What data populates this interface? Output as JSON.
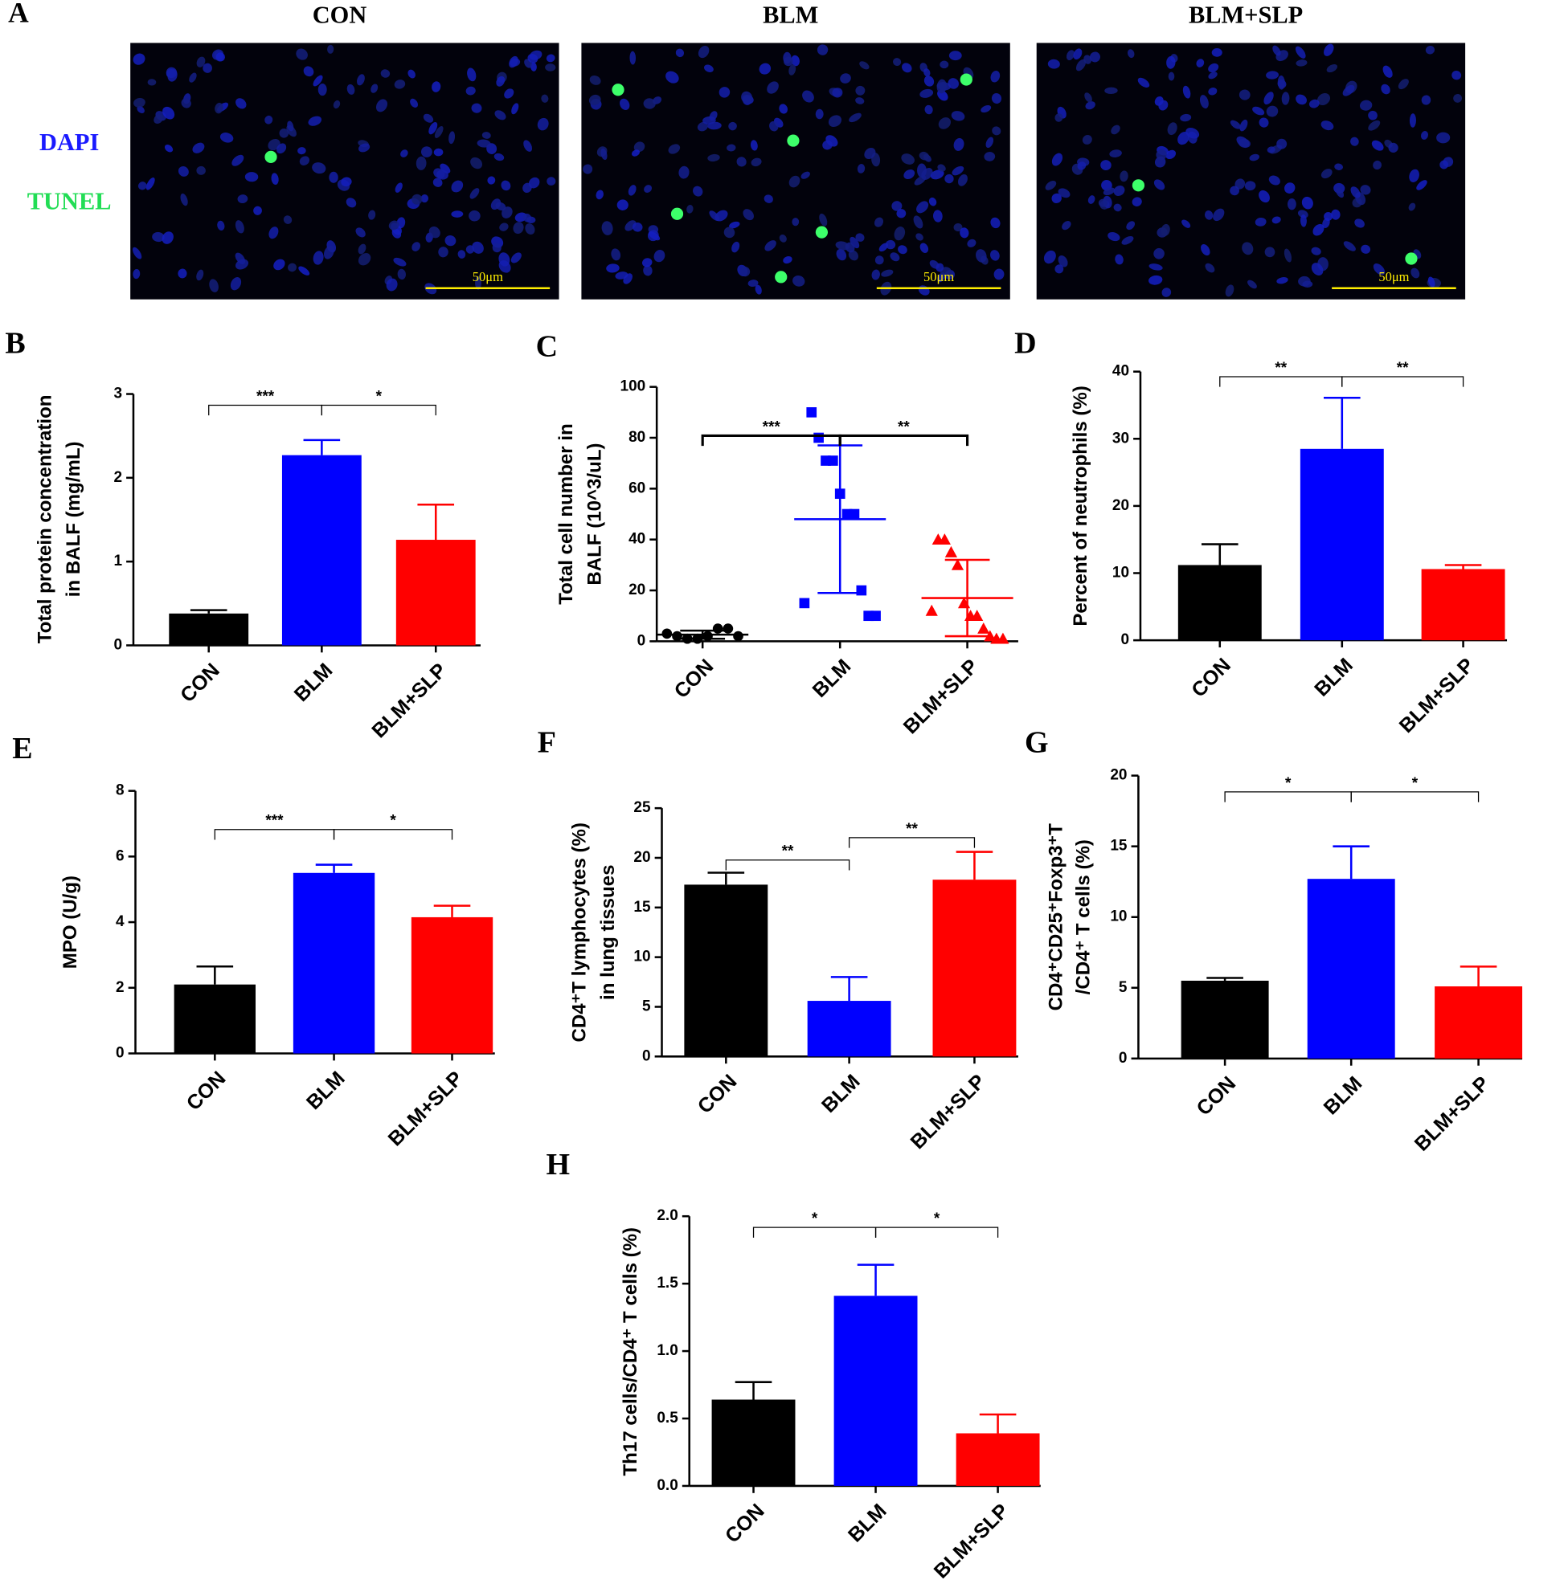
{
  "panel_a": {
    "label": "A",
    "columns": [
      "CON",
      "BLM",
      "BLM+SLP"
    ],
    "stains": [
      "DAPI",
      "TUNEL"
    ],
    "stain_colors": [
      "#1a1aff",
      "#22dd55"
    ],
    "scale_bar": [
      "50μm",
      "50μm",
      "50μm"
    ]
  },
  "chart_data": [
    {
      "type": "bar",
      "panel": "B",
      "ylabel": [
        "Total protein concentration",
        "in BALF (mg/mL)"
      ],
      "categories": [
        "CON",
        "BLM",
        "BLM+SLP"
      ],
      "values": [
        0.38,
        2.27,
        1.26
      ],
      "errors": [
        0.04,
        0.18,
        0.42
      ],
      "colors": [
        "#000000",
        "#0000ff",
        "#ff0000"
      ],
      "ylim": [
        0,
        3
      ],
      "yticks": [
        0,
        1,
        2,
        3
      ],
      "comparisons": [
        [
          0,
          1
        ],
        [
          1,
          2
        ]
      ],
      "comparison_labels": [
        "***",
        "*"
      ]
    },
    {
      "type": "scatter",
      "panel": "C",
      "ylabel": [
        "Total cell number in",
        "BALF (10^3/uL)"
      ],
      "series": [
        {
          "name": "CON",
          "color": "#000000",
          "marker": "circle",
          "values": [
            3,
            2,
            1,
            1,
            2,
            5,
            5,
            2
          ],
          "mean": 2.6,
          "sd": 1.6
        },
        {
          "name": "BLM",
          "color": "#0000ff",
          "marker": "square",
          "values": [
            15,
            90,
            80,
            71,
            71,
            58,
            50,
            50,
            20,
            10,
            10
          ],
          "mean": 48,
          "sd": 29
        },
        {
          "name": "BLM+SLP",
          "color": "#ff0000",
          "marker": "triangle",
          "values": [
            12,
            40,
            40,
            35,
            30,
            15,
            10,
            10,
            5,
            2,
            1,
            1
          ],
          "mean": 17,
          "sd": 15
        }
      ],
      "ylim": [
        0,
        100
      ],
      "yticks": [
        0,
        20,
        40,
        60,
        80,
        100
      ],
      "comparisons": [
        [
          0,
          1
        ],
        [
          1,
          2
        ]
      ],
      "comparison_labels": [
        "***",
        "**"
      ]
    },
    {
      "type": "bar",
      "panel": "D",
      "ylabel": [
        "Percent of neutrophils (%)"
      ],
      "categories": [
        "CON",
        "BLM",
        "BLM+SLP"
      ],
      "values": [
        11.2,
        28.5,
        10.6
      ],
      "errors": [
        3.1,
        7.6,
        0.6
      ],
      "colors": [
        "#000000",
        "#0000ff",
        "#ff0000"
      ],
      "ylim": [
        0,
        40
      ],
      "yticks": [
        0,
        10,
        20,
        30,
        40
      ],
      "comparisons": [
        [
          0,
          1
        ],
        [
          1,
          2
        ]
      ],
      "comparison_labels": [
        "**",
        "**"
      ]
    },
    {
      "type": "bar",
      "panel": "E",
      "ylabel": [
        "MPO (U/g)"
      ],
      "categories": [
        "CON",
        "BLM",
        "BLM+SLP"
      ],
      "values": [
        2.1,
        5.5,
        4.15
      ],
      "errors": [
        0.55,
        0.25,
        0.35
      ],
      "colors": [
        "#000000",
        "#0000ff",
        "#ff0000"
      ],
      "ylim": [
        0,
        8
      ],
      "yticks": [
        0,
        2,
        4,
        6,
        8
      ],
      "comparisons": [
        [
          0,
          1
        ],
        [
          1,
          2
        ]
      ],
      "comparison_labels": [
        "***",
        "*"
      ]
    },
    {
      "type": "bar",
      "panel": "F",
      "ylabel": [
        "CD4⁺T lymphocytes (%)",
        "in lung tissues"
      ],
      "categories": [
        "CON",
        "BLM",
        "BLM+SLP"
      ],
      "values": [
        17.3,
        5.6,
        17.8
      ],
      "errors": [
        1.2,
        2.4,
        2.8
      ],
      "colors": [
        "#000000",
        "#0000ff",
        "#ff0000"
      ],
      "ylim": [
        0,
        25
      ],
      "yticks": [
        0,
        5,
        10,
        15,
        20,
        25
      ],
      "comparisons": [
        [
          0,
          1
        ],
        [
          1,
          2
        ]
      ],
      "comparison_labels": [
        "**",
        "**"
      ]
    },
    {
      "type": "bar",
      "panel": "G",
      "ylabel": [
        "CD4⁺CD25⁺Foxp3⁺T",
        "/CD4⁺ T cells (%)"
      ],
      "categories": [
        "CON",
        "BLM",
        "BLM+SLP"
      ],
      "values": [
        5.5,
        12.7,
        5.1
      ],
      "errors": [
        0.2,
        2.3,
        1.4
      ],
      "colors": [
        "#000000",
        "#0000ff",
        "#ff0000"
      ],
      "ylim": [
        0,
        20
      ],
      "yticks": [
        0,
        5,
        10,
        15,
        20
      ],
      "comparisons": [
        [
          0,
          1
        ],
        [
          1,
          2
        ]
      ],
      "comparison_labels": [
        "*",
        "*"
      ]
    },
    {
      "type": "bar",
      "panel": "H",
      "ylabel": [
        "Th17 cells/CD4⁺ T cells (%)"
      ],
      "categories": [
        "CON",
        "BLM",
        "BLM+SLP"
      ],
      "values": [
        0.64,
        1.41,
        0.39
      ],
      "errors": [
        0.13,
        0.23,
        0.14
      ],
      "colors": [
        "#000000",
        "#0000ff",
        "#ff0000"
      ],
      "ylim": [
        0,
        2
      ],
      "yticks": [
        {
          "value": 0,
          "label": "0.0"
        },
        {
          "value": 0.5,
          "label": "0.5"
        },
        {
          "value": 1,
          "label": "1.0"
        },
        {
          "value": 1.5,
          "label": "1.5"
        },
        {
          "value": 2,
          "label": "2.0"
        }
      ],
      "comparisons": [
        [
          0,
          1
        ],
        [
          1,
          2
        ]
      ],
      "comparison_labels": [
        "*",
        "*"
      ]
    }
  ]
}
